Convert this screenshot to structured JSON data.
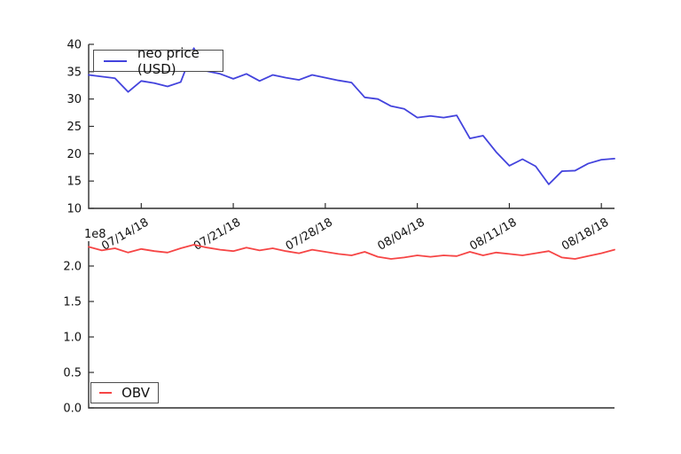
{
  "figure": {
    "background": "#ffffff",
    "axis_color": "#2e2e2e",
    "tick_label_color": "#111111"
  },
  "chart_data": [
    {
      "type": "line",
      "title": "",
      "xlabel": "",
      "ylabel": "",
      "ylim": [
        10,
        40
      ],
      "ytick_labels": [
        "10",
        "15",
        "20",
        "25",
        "30",
        "35",
        "40"
      ],
      "xtick_labels": [
        "07/14/18",
        "07/21/18",
        "07/28/18",
        "08/04/18",
        "08/11/18",
        "08/18/18"
      ],
      "xtick_indices": [
        4,
        11,
        18,
        25,
        32,
        39
      ],
      "xtick_rotation_deg": -30,
      "grid": false,
      "legend_position": "upper-left",
      "series": [
        {
          "name": "neo price (USD)",
          "color": "#4343dd",
          "values": [
            34.4,
            34.1,
            33.8,
            31.3,
            33.3,
            32.9,
            32.3,
            33.1,
            39.3,
            35.1,
            34.6,
            33.7,
            34.6,
            33.3,
            34.4,
            33.9,
            33.5,
            34.4,
            33.9,
            33.4,
            33.0,
            30.3,
            30.0,
            28.7,
            28.2,
            26.6,
            26.9,
            26.6,
            27.0,
            22.8,
            23.3,
            20.3,
            17.8,
            19.0,
            17.7,
            14.4,
            16.8,
            16.9,
            18.2,
            18.9,
            19.1
          ]
        }
      ]
    },
    {
      "type": "line",
      "title": "",
      "xlabel": "",
      "ylabel": "",
      "y_offset_label": "1e8",
      "y_multiplier": 100000000,
      "ylim": [
        0,
        2.35
      ],
      "ytick_labels": [
        "0.0",
        "0.5",
        "1.0",
        "1.5",
        "2.0"
      ],
      "xtick_labels": [],
      "xtick_indices": [],
      "grid": false,
      "legend_position": "lower-left",
      "series": [
        {
          "name": "OBV",
          "color": "#f64545",
          "values": [
            2.27,
            2.22,
            2.25,
            2.19,
            2.24,
            2.21,
            2.19,
            2.25,
            2.3,
            2.26,
            2.23,
            2.21,
            2.26,
            2.22,
            2.25,
            2.21,
            2.18,
            2.23,
            2.2,
            2.17,
            2.15,
            2.2,
            2.13,
            2.1,
            2.12,
            2.15,
            2.13,
            2.15,
            2.14,
            2.2,
            2.15,
            2.19,
            2.17,
            2.15,
            2.18,
            2.21,
            2.12,
            2.1,
            2.14,
            2.18,
            2.23
          ]
        }
      ]
    }
  ]
}
